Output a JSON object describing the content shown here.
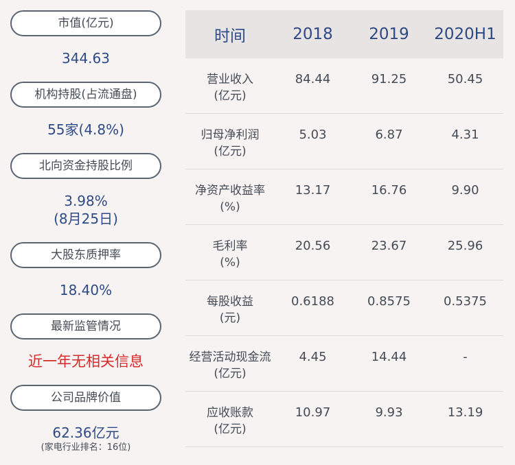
{
  "left": {
    "items": [
      {
        "label": "市值(亿元)",
        "value": "344.63"
      },
      {
        "label": "机构持股(占流通盘)",
        "value": "55家(4.8%)"
      },
      {
        "label": "北向资金持股比例",
        "value": "3.98%",
        "value2": "(8月25日)"
      },
      {
        "label": "大股东质押率",
        "value": "18.40%"
      },
      {
        "label": "最新监管情况",
        "value": "近一年无相关信息"
      },
      {
        "label": "公司品牌价值",
        "value": "62.36亿元",
        "note": "(家电行业排名：16位)"
      }
    ]
  },
  "table": {
    "headers": [
      "时间",
      "2018",
      "2019",
      "2020H1"
    ],
    "rows": [
      {
        "name": "营业收入",
        "unit": "(亿元)",
        "values": [
          "84.44",
          "91.25",
          "50.45"
        ]
      },
      {
        "name": "归母净利润",
        "unit": "(亿元)",
        "values": [
          "5.03",
          "6.87",
          "4.31"
        ]
      },
      {
        "name": "净资产收益率",
        "unit": "(%)",
        "values": [
          "13.17",
          "16.76",
          "9.90"
        ]
      },
      {
        "name": "毛利率",
        "unit": "(%)",
        "values": [
          "20.56",
          "23.67",
          "25.96"
        ]
      },
      {
        "name": "每股收益",
        "unit": "(元)",
        "values": [
          "0.6188",
          "0.8575",
          "0.5375"
        ]
      },
      {
        "name": "经营活动现金流",
        "unit": "(亿元)",
        "values": [
          "4.45",
          "14.44",
          "-"
        ]
      },
      {
        "name": "应收账款",
        "unit": "(亿元)",
        "values": [
          "10.97",
          "9.93",
          "13.19"
        ]
      }
    ]
  }
}
